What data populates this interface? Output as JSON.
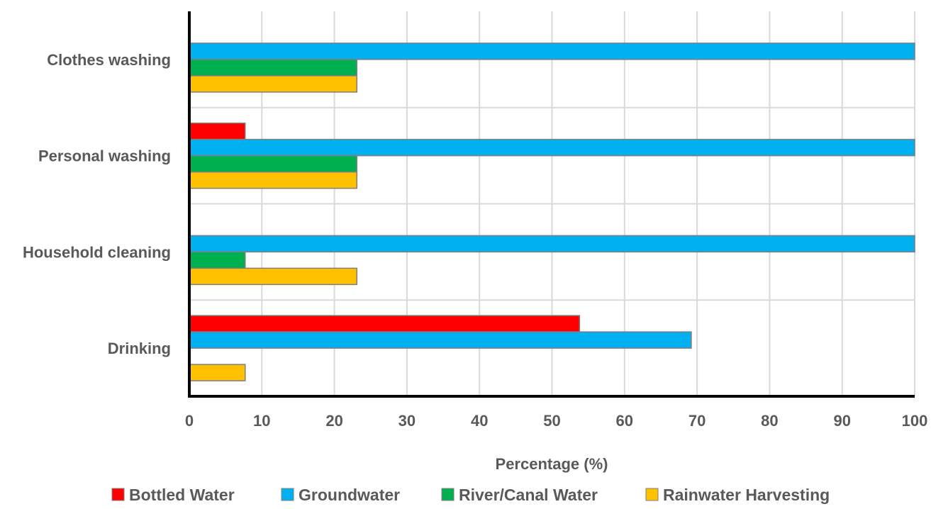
{
  "chart_data": {
    "type": "bar",
    "orientation": "horizontal",
    "categories": [
      "Clothes washing",
      "Personal washing",
      "Household cleaning",
      "Drinking"
    ],
    "series": [
      {
        "name": "Bottled Water",
        "color": "#ff0000",
        "values": [
          0,
          7.7,
          0,
          53.8
        ]
      },
      {
        "name": "Groundwater",
        "color": "#00b0f0",
        "values": [
          100,
          100,
          100,
          69.2
        ]
      },
      {
        "name": "River/Canal Water",
        "color": "#00b050",
        "values": [
          23.1,
          23.1,
          7.7,
          0
        ]
      },
      {
        "name": "Rainwater Harvesting",
        "color": "#ffc000",
        "values": [
          23.1,
          23.1,
          23.1,
          7.7
        ]
      }
    ],
    "xlabel": "Percentage (%)",
    "ylabel": "",
    "xlim": [
      0,
      100
    ],
    "xticks": [
      "0",
      "10",
      "20",
      "30",
      "40",
      "50",
      "60",
      "70",
      "80",
      "90",
      "100"
    ],
    "grid": true,
    "legend_position": "bottom"
  }
}
